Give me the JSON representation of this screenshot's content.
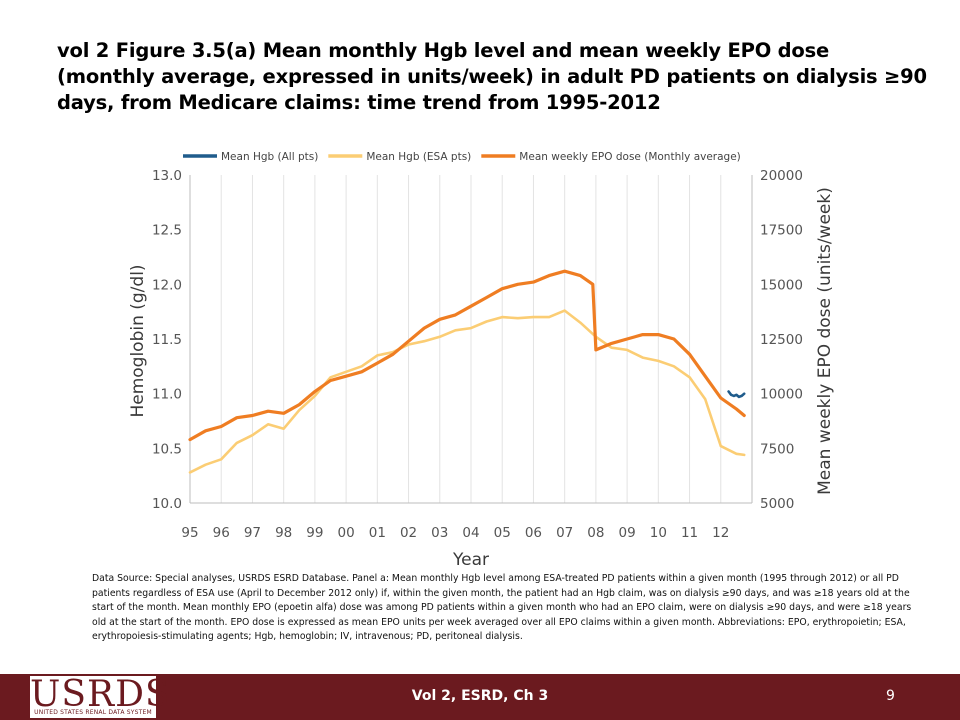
{
  "slide": {
    "title": "vol 2  Figure 3.5(a) Mean monthly Hgb level and mean weekly EPO dose (monthly average, expressed in units/week) in adult PD patients on dialysis ≥90 days, from Medicare claims: time trend from 1995-2012",
    "source_note": "Data Source: Special analyses, USRDS ESRD Database. Panel a: Mean monthly Hgb level among ESA-treated PD patients within a given month (1995 through 2012) or all PD patients regardless of ESA use (April to December 2012 only) if, within the given month, the patient had an Hgb claim, was on dialysis ≥90 days, and was ≥18 years old at the start of the month. Mean monthly EPO (epoetin alfa) dose was among PD patients within a given month who had an EPO claim, were on dialysis ≥90 days, and were ≥18 years old at the start of the month. EPO dose is expressed as mean EPO units per week averaged over all EPO claims within a given month. Abbreviations: EPO, erythropoietin; ESA, erythropoiesis-stimulating agents; Hgb, hemoglobin; IV, intravenous; PD, peritoneal dialysis."
  },
  "footer": {
    "logo_text": "USRDS",
    "logo_subtext": "UNITED STATES RENAL DATA SYSTEM",
    "label": "Vol 2, ESRD, Ch 3",
    "page_number": "9"
  },
  "colors": {
    "hgb_all": "#1f5c8c",
    "hgb_esa": "#fbcd74",
    "epo": "#ef7d22",
    "footer_bg": "#6b1a1f"
  },
  "chart_data": {
    "type": "line",
    "title": "",
    "xlabel": "Year",
    "ylabel_left": "Hemoglobin (g/dl)",
    "ylabel_right": "Mean weekly EPO dose (units/week)",
    "x_ticks": [
      "95",
      "96",
      "97",
      "98",
      "99",
      "00",
      "01",
      "02",
      "03",
      "04",
      "05",
      "06",
      "07",
      "08",
      "09",
      "10",
      "11",
      "12"
    ],
    "y_left_ticks": [
      "10.0",
      "10.5",
      "11.0",
      "11.5",
      "12.0",
      "12.5",
      "13.0"
    ],
    "y_right_ticks": [
      "5000",
      "7500",
      "10000",
      "12500",
      "15000",
      "17500",
      "20000"
    ],
    "ylim_left": [
      10.0,
      13.0
    ],
    "ylim_right": [
      5000,
      20000
    ],
    "xlim": [
      1995,
      2013
    ],
    "grid": "vertical",
    "legend_position": "top",
    "series": [
      {
        "name": "Mean Hgb (All pts)",
        "axis": "left",
        "x": [
          2012.25,
          2012.33,
          2012.42,
          2012.5,
          2012.58,
          2012.67,
          2012.75
        ],
        "y": [
          11.02,
          10.99,
          10.98,
          10.99,
          10.97,
          10.98,
          11.0
        ]
      },
      {
        "name": "Mean Hgb (ESA pts)",
        "axis": "left",
        "x": [
          1995.0,
          1995.5,
          1996.0,
          1996.5,
          1997.0,
          1997.5,
          1998.0,
          1998.5,
          1999.0,
          1999.5,
          2000.0,
          2000.5,
          2001.0,
          2001.5,
          2002.0,
          2002.5,
          2003.0,
          2003.5,
          2004.0,
          2004.5,
          2005.0,
          2005.5,
          2006.0,
          2006.5,
          2007.0,
          2007.5,
          2008.0,
          2008.5,
          2009.0,
          2009.5,
          2010.0,
          2010.5,
          2011.0,
          2011.5,
          2012.0,
          2012.5,
          2012.75
        ],
        "y": [
          10.28,
          10.35,
          10.4,
          10.55,
          10.62,
          10.72,
          10.68,
          10.85,
          10.98,
          11.15,
          11.2,
          11.25,
          11.35,
          11.38,
          11.45,
          11.48,
          11.52,
          11.58,
          11.6,
          11.66,
          11.7,
          11.69,
          11.7,
          11.7,
          11.76,
          11.65,
          11.52,
          11.42,
          11.4,
          11.33,
          11.3,
          11.25,
          11.15,
          10.95,
          10.52,
          10.45,
          10.44
        ]
      },
      {
        "name": "Mean weekly EPO dose (Monthly average)",
        "axis": "right",
        "x": [
          1995.0,
          1995.5,
          1996.0,
          1996.5,
          1997.0,
          1997.5,
          1998.0,
          1998.5,
          1999.0,
          1999.5,
          2000.0,
          2000.5,
          2001.0,
          2001.5,
          2002.0,
          2002.5,
          2003.0,
          2003.5,
          2004.0,
          2004.5,
          2005.0,
          2005.5,
          2006.0,
          2006.5,
          2007.0,
          2007.5,
          2007.9,
          2008.0,
          2008.5,
          2009.0,
          2009.5,
          2010.0,
          2010.5,
          2011.0,
          2011.5,
          2012.0,
          2012.5,
          2012.75
        ],
        "y": [
          7900,
          8300,
          8500,
          8900,
          9000,
          9200,
          9100,
          9500,
          10100,
          10600,
          10800,
          11000,
          11400,
          11800,
          12400,
          13000,
          13400,
          13600,
          14000,
          14400,
          14800,
          15000,
          15100,
          15400,
          15600,
          15400,
          15000,
          12000,
          12300,
          12500,
          12700,
          12700,
          12500,
          11800,
          10800,
          9800,
          9300,
          9000
        ]
      }
    ]
  }
}
